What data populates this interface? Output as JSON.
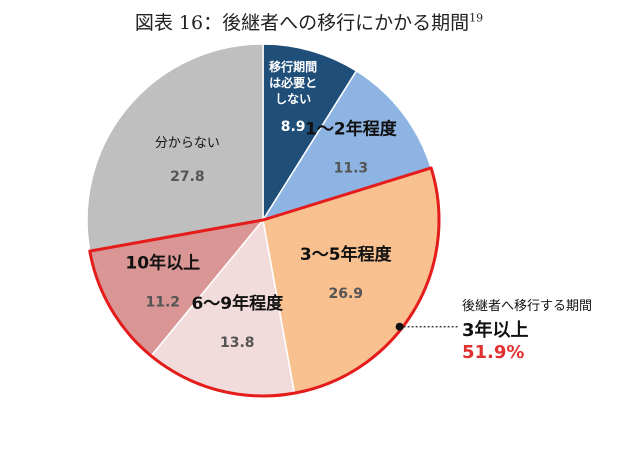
{
  "title": "図表 16：後継者への移行にかかる期間",
  "title_footnote": "19",
  "chart_data": {
    "type": "pie",
    "slices": [
      {
        "label_lines": [
          "移行期間",
          "は必要と",
          "しない"
        ],
        "value": 8.9,
        "value_text": "8.9",
        "color": "#1f4e79"
      },
      {
        "label_lines": [
          "1～2年程度"
        ],
        "value": 11.3,
        "value_text": "11.3",
        "color": "#8db4e2"
      },
      {
        "label_lines": [
          "3～5年程度"
        ],
        "value": 26.9,
        "value_text": "26.9",
        "color": "#f9c090"
      },
      {
        "label_lines": [
          "6～9年程度"
        ],
        "value": 13.8,
        "value_text": "13.8",
        "color": "#f2dcdb"
      },
      {
        "label_lines": [
          "10年以上"
        ],
        "value": 11.2,
        "value_text": "11.2",
        "color": "#d99694"
      },
      {
        "label_lines": [
          "分からない"
        ],
        "value": 27.8,
        "value_text": "27.8",
        "color": "#bfbfbf"
      }
    ],
    "start_angle": "12 o'clock",
    "direction": "clockwise",
    "highlight_color": "#e41c1c",
    "annotation": {
      "description": "後継者へ移行する期間",
      "headline": "3年以上",
      "total": "51.9%",
      "total_color": "#e03030"
    }
  }
}
